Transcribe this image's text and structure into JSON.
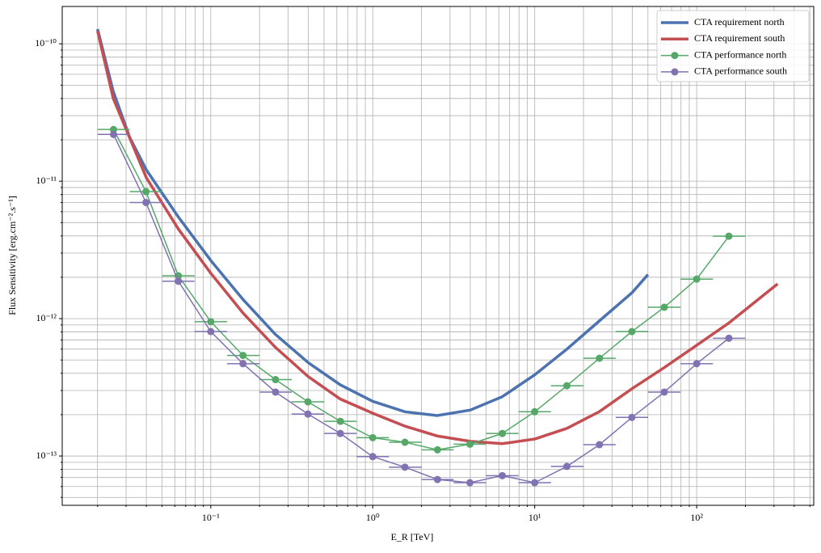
{
  "chart_data": {
    "type": "line",
    "xlabel": "E_R [TeV]",
    "ylabel": "Flux Sensitivity [erg.cm⁻².s⁻¹]",
    "xscale": "log",
    "yscale": "log",
    "grid": true,
    "legend": "upper right",
    "xlim": [
      0.0121,
      528
    ],
    "ylim": [
      4.38e-14,
      1.87e-10
    ],
    "xticks": [
      {
        "value": 0.1,
        "label": "10⁻¹"
      },
      {
        "value": 1,
        "label": "10⁰"
      },
      {
        "value": 10,
        "label": "10¹"
      },
      {
        "value": 100,
        "label": "10²"
      }
    ],
    "yticks": [
      {
        "value": 1e-13,
        "label": "10⁻¹³"
      },
      {
        "value": 1e-12,
        "label": "10⁻¹²"
      },
      {
        "value": 1e-11,
        "label": "10⁻¹¹"
      },
      {
        "value": 1e-10,
        "label": "10⁻¹⁰"
      }
    ],
    "series": [
      {
        "name": "CTA requirement north",
        "color": "#4c72b0",
        "x": [
          0.02,
          0.025,
          0.0316,
          0.04,
          0.063,
          0.1,
          0.158,
          0.25,
          0.398,
          0.63,
          1,
          1.58,
          2.5,
          4,
          6.3,
          10,
          15.8,
          25,
          40,
          50
        ],
        "values": [
          1.28e-10,
          4.5e-11,
          2.08e-11,
          1.21e-11,
          5.5e-12,
          2.65e-12,
          1.38e-12,
          7.7e-13,
          4.8e-13,
          3.3e-13,
          2.5e-13,
          2.1e-13,
          1.97e-13,
          2.16e-13,
          2.7e-13,
          3.9e-13,
          6e-13,
          9.6e-13,
          1.55e-12,
          2.09e-12
        ]
      },
      {
        "name": "CTA requirement south",
        "color": "#c44e52",
        "x": [
          0.02,
          0.025,
          0.04,
          0.063,
          0.1,
          0.158,
          0.25,
          0.398,
          0.63,
          1,
          1.58,
          2.5,
          4,
          6.3,
          10,
          15.8,
          25,
          40,
          63,
          100,
          158,
          316
        ],
        "values": [
          1.24e-10,
          4e-11,
          1.06e-11,
          4.5e-12,
          2.14e-12,
          1.1e-12,
          6.2e-13,
          3.8e-13,
          2.6e-13,
          2.05e-13,
          1.65e-13,
          1.4e-13,
          1.28e-13,
          1.23e-13,
          1.33e-13,
          1.59e-13,
          2.1e-13,
          3.1e-13,
          4.4e-13,
          6.4e-13,
          9.3e-13,
          1.79e-12
        ]
      },
      {
        "name": "CTA performance north",
        "color": "#55a868",
        "marker": "o",
        "x": [
          0.0251,
          0.0398,
          0.0631,
          0.1,
          0.158,
          0.251,
          0.398,
          0.631,
          1,
          1.58,
          2.51,
          3.98,
          6.31,
          10,
          15.8,
          25.1,
          39.8,
          63.1,
          100,
          158
        ],
        "x_edges": [
          0.02,
          0.0316,
          0.0501,
          0.0794,
          0.126,
          0.2,
          0.316,
          0.501,
          0.794,
          1.26,
          2,
          3.16,
          5.01,
          7.94,
          12.6,
          20,
          31.6,
          50.1,
          79.4,
          126,
          200
        ],
        "values": [
          2.38e-11,
          8.4e-12,
          2.05e-12,
          9.5e-13,
          5.4e-13,
          3.6e-13,
          2.48e-13,
          1.79e-13,
          1.36e-13,
          1.26e-13,
          1.11e-13,
          1.22e-13,
          1.46e-13,
          2.1e-13,
          3.25e-13,
          5.15e-13,
          8.05e-13,
          1.21e-12,
          1.94e-12,
          3.98e-12
        ]
      },
      {
        "name": "CTA performance south",
        "color": "#8172b2",
        "marker": "o",
        "x": [
          0.0251,
          0.0398,
          0.0631,
          0.1,
          0.158,
          0.251,
          0.398,
          0.631,
          1,
          1.58,
          2.51,
          3.98,
          6.31,
          10,
          15.8,
          25.1,
          39.8,
          63.1,
          100,
          158
        ],
        "x_edges": [
          0.02,
          0.0316,
          0.0501,
          0.0794,
          0.126,
          0.2,
          0.316,
          0.501,
          0.794,
          1.26,
          2,
          3.16,
          5.01,
          7.94,
          12.6,
          20,
          31.6,
          50.1,
          79.4,
          126,
          200
        ],
        "values": [
          2.19e-11,
          7e-12,
          1.87e-12,
          8.05e-13,
          4.7e-13,
          2.92e-13,
          2.02e-13,
          1.46e-13,
          9.9e-14,
          8.3e-14,
          6.75e-14,
          6.4e-14,
          7.2e-14,
          6.4e-14,
          8.4e-14,
          1.21e-13,
          1.91e-13,
          2.92e-13,
          4.7e-13,
          7.2e-13
        ]
      }
    ]
  }
}
